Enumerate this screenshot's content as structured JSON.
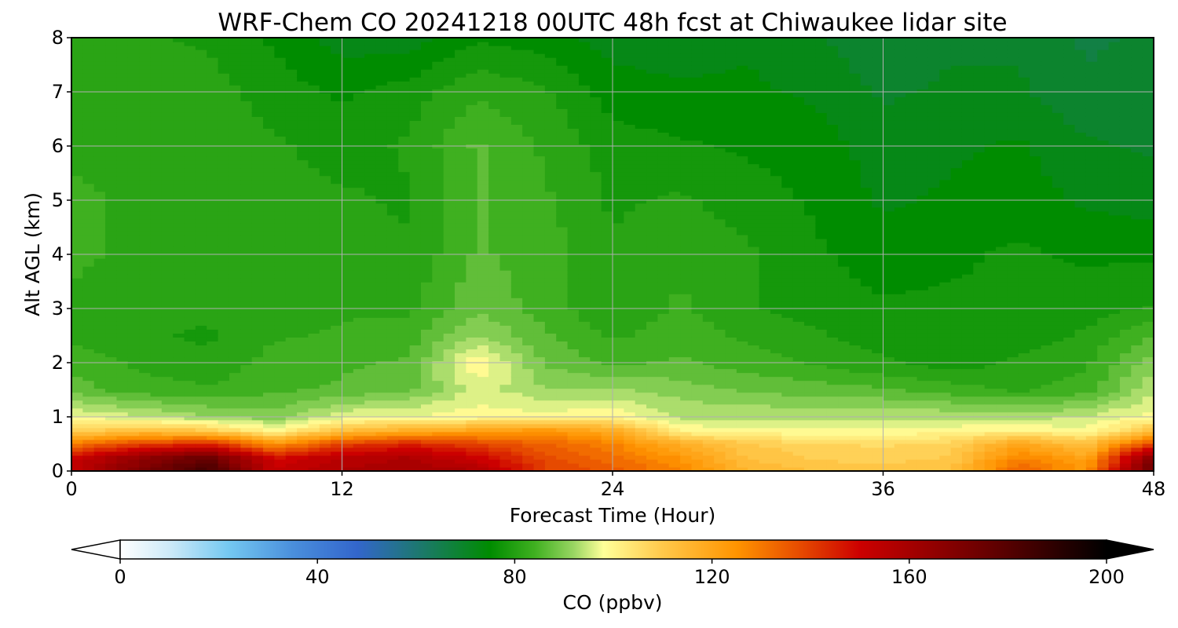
{
  "chart_data": {
    "type": "heatmap",
    "title": "WRF-Chem CO  20241218 00UTC 48h fcst at Chiwaukee lidar site",
    "xlabel": "Forecast Time (Hour)",
    "ylabel": "Alt AGL (km)",
    "xlim": [
      0,
      48
    ],
    "ylim": [
      0,
      8
    ],
    "xticks": [
      0,
      12,
      24,
      36,
      48
    ],
    "yticks": [
      0,
      1,
      2,
      3,
      4,
      5,
      6,
      7,
      8
    ],
    "grid": true,
    "colorbar": {
      "label": "CO  (ppbv)",
      "range": [
        0,
        200
      ],
      "ticks": [
        0,
        40,
        80,
        120,
        160,
        200
      ],
      "extend": "both",
      "stops": [
        {
          "v": 0,
          "c": "#ffffff"
        },
        {
          "v": 10,
          "c": "#cdeaf8"
        },
        {
          "v": 22,
          "c": "#74c8f1"
        },
        {
          "v": 35,
          "c": "#4a8fdc"
        },
        {
          "v": 48,
          "c": "#3366cc"
        },
        {
          "v": 62,
          "c": "#1a7a64"
        },
        {
          "v": 75,
          "c": "#008c00"
        },
        {
          "v": 84,
          "c": "#3fb020"
        },
        {
          "v": 92,
          "c": "#9ad663"
        },
        {
          "v": 98,
          "c": "#ffff99"
        },
        {
          "v": 110,
          "c": "#ffc84a"
        },
        {
          "v": 125,
          "c": "#ff9400"
        },
        {
          "v": 138,
          "c": "#e64a00"
        },
        {
          "v": 150,
          "c": "#cc0000"
        },
        {
          "v": 175,
          "c": "#6b0000"
        },
        {
          "v": 200,
          "c": "#000000"
        }
      ]
    },
    "times_hr": [
      0,
      3,
      6,
      9,
      12,
      15,
      18,
      21,
      24,
      27,
      30,
      33,
      36,
      39,
      42,
      45,
      48
    ],
    "altitudes_km": [
      0,
      0.25,
      0.5,
      0.75,
      1,
      1.5,
      2,
      2.5,
      3,
      4,
      5,
      6,
      7,
      8
    ],
    "values_ppbv": [
      [
        152,
        170,
        185,
        152,
        158,
        160,
        158,
        140,
        135,
        128,
        116,
        112,
        111,
        112,
        134,
        124,
        178
      ],
      [
        150,
        165,
        176,
        148,
        155,
        158,
        150,
        138,
        132,
        124,
        112,
        109,
        108,
        110,
        128,
        120,
        170
      ],
      [
        130,
        140,
        145,
        125,
        140,
        145,
        140,
        134,
        128,
        118,
        110,
        107,
        106,
        108,
        120,
        112,
        140
      ],
      [
        108,
        112,
        110,
        99,
        112,
        118,
        120,
        124,
        118,
        100,
        98,
        98,
        98,
        99,
        101,
        98,
        112
      ],
      [
        98,
        95,
        92,
        90,
        97,
        98,
        99,
        99,
        100,
        94,
        94,
        94,
        94,
        94,
        93,
        95,
        99
      ],
      [
        87,
        84,
        83,
        85,
        86,
        88,
        96,
        92,
        92,
        90,
        88,
        87,
        86,
        84,
        82,
        84,
        94
      ],
      [
        84,
        82,
        80,
        84,
        85,
        86,
        100,
        88,
        85,
        86,
        84,
        82,
        80,
        78,
        80,
        82,
        90
      ],
      [
        82,
        80,
        79,
        82,
        83,
        84,
        92,
        86,
        82,
        84,
        82,
        80,
        78,
        77,
        78,
        80,
        86
      ],
      [
        82,
        81,
        80,
        81,
        82,
        82,
        88,
        84,
        80,
        83,
        80,
        78,
        77,
        77,
        77,
        78,
        80
      ],
      [
        83,
        82,
        81,
        82,
        81,
        80,
        86,
        84,
        80,
        82,
        80,
        77,
        75,
        76,
        77,
        76,
        76
      ],
      [
        83,
        82,
        82,
        81,
        80,
        79,
        86,
        83,
        79,
        80,
        78,
        76,
        73,
        74,
        75,
        73,
        72
      ],
      [
        82,
        82,
        82,
        80,
        78,
        80,
        86,
        82,
        78,
        77,
        76,
        75,
        72,
        73,
        74,
        71,
        70
      ],
      [
        82,
        81,
        81,
        78,
        76,
        78,
        82,
        80,
        75,
        74,
        74,
        73,
        70,
        71,
        71,
        68,
        69
      ],
      [
        80,
        80,
        79,
        76,
        72,
        72,
        76,
        75,
        72,
        72,
        73,
        71,
        68,
        70,
        70,
        67,
        68
      ]
    ]
  }
}
